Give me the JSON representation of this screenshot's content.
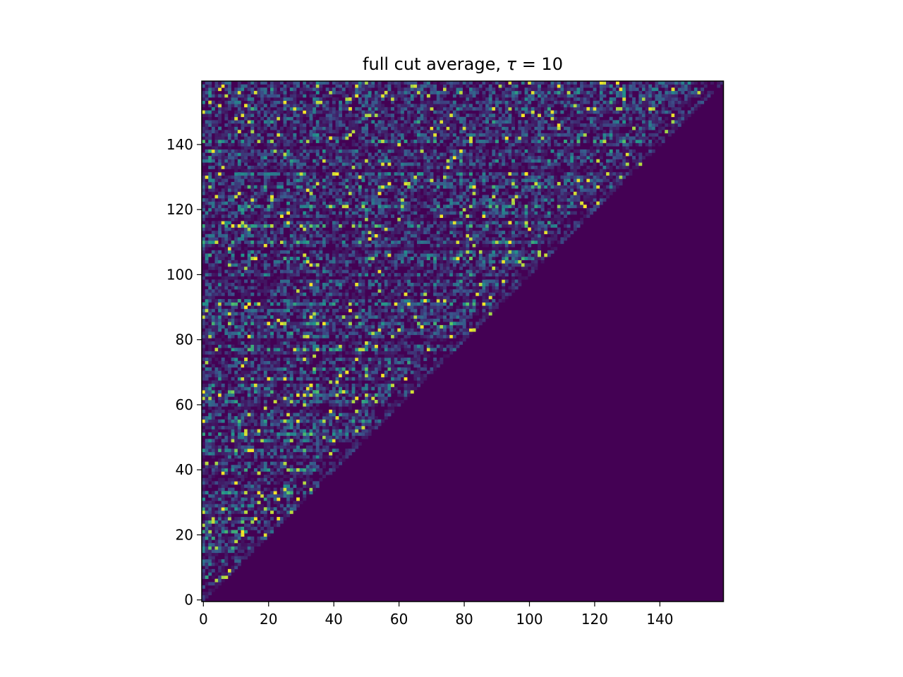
{
  "chart_data": {
    "type": "heatmap",
    "title_prefix": "full cut average, ",
    "title_symbol": "τ",
    "title_suffix": " = 10",
    "xlabel": "",
    "ylabel": "",
    "x_ticks": [
      0,
      20,
      40,
      60,
      80,
      100,
      120,
      140
    ],
    "y_ticks": [
      0,
      20,
      40,
      60,
      80,
      100,
      120,
      140
    ],
    "xlim": [
      -0.5,
      159.5
    ],
    "ylim": [
      -0.5,
      159.5
    ],
    "y_origin": "lower",
    "grid": false,
    "n_rows": 160,
    "n_cols": 160,
    "structure": "lower-triangular: cells with column index greater than row index are zero",
    "colormap": "viridis",
    "colormap_stops": [
      "#440154",
      "#3b528b",
      "#21918c",
      "#5ec962",
      "#fde725"
    ],
    "background_color": "#440154",
    "bright_rows": [
      0,
      7,
      12,
      16,
      19,
      21,
      24,
      28,
      33,
      40,
      46,
      51,
      55,
      64,
      71,
      77,
      85,
      91,
      105,
      110,
      115,
      121,
      127,
      141
    ],
    "dark_rows": [
      3,
      14,
      26,
      38,
      43,
      59,
      67,
      75,
      80,
      93,
      99,
      108,
      117,
      132,
      139
    ],
    "diagonal_bands": true
  }
}
